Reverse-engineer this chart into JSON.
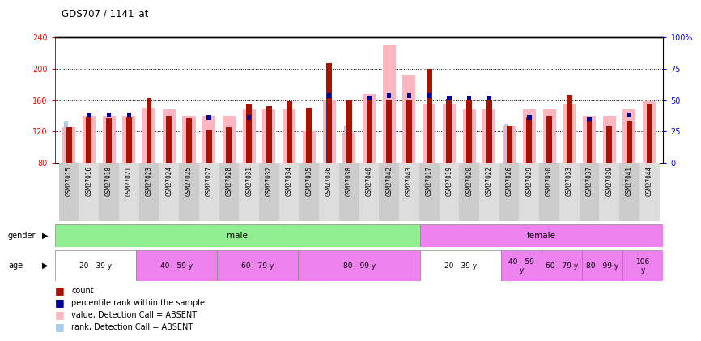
{
  "title": "GDS707 / 1141_at",
  "samples": [
    "GSM27015",
    "GSM27016",
    "GSM27018",
    "GSM27021",
    "GSM27023",
    "GSM27024",
    "GSM27025",
    "GSM27027",
    "GSM27028",
    "GSM27031",
    "GSM27032",
    "GSM27034",
    "GSM27035",
    "GSM27036",
    "GSM27038",
    "GSM27040",
    "GSM27042",
    "GSM27043",
    "GSM27017",
    "GSM27019",
    "GSM27020",
    "GSM27022",
    "GSM27026",
    "GSM27029",
    "GSM27030",
    "GSM27033",
    "GSM27037",
    "GSM27039",
    "GSM27041",
    "GSM27044"
  ],
  "count": [
    125,
    138,
    137,
    138,
    163,
    140,
    137,
    122,
    125,
    155,
    152,
    158,
    150,
    207,
    160,
    160,
    161,
    160,
    200,
    162,
    161,
    161,
    128,
    138,
    140,
    167,
    133,
    126,
    133,
    155
  ],
  "rank": [
    null,
    138,
    138,
    138,
    null,
    null,
    null,
    135,
    null,
    135,
    null,
    null,
    null,
    163,
    null,
    160,
    163,
    163,
    163,
    160,
    160,
    160,
    null,
    135,
    null,
    null,
    133,
    null,
    138,
    null
  ],
  "pink_value": [
    125,
    140,
    140,
    140,
    150,
    148,
    140,
    140,
    140,
    148,
    148,
    148,
    120,
    160,
    118,
    168,
    230,
    192,
    155,
    155,
    148,
    148,
    128,
    148,
    148,
    155,
    140,
    140,
    148,
    158
  ],
  "light_blue_rank": [
    133,
    null,
    null,
    null,
    null,
    null,
    null,
    null,
    null,
    null,
    null,
    null,
    null,
    160,
    128,
    null,
    null,
    null,
    null,
    null,
    null,
    null,
    130,
    null,
    null,
    null,
    null,
    null,
    null,
    null
  ],
  "gender_groups": [
    {
      "label": "male",
      "start": 0,
      "end": 18,
      "color": "#90EE90"
    },
    {
      "label": "female",
      "start": 18,
      "end": 30,
      "color": "#EE82EE"
    }
  ],
  "age_groups": [
    {
      "label": "20 - 39 y",
      "start": 0,
      "end": 4,
      "color": "#ffffff"
    },
    {
      "label": "40 - 59 y",
      "start": 4,
      "end": 8,
      "color": "#EE82EE"
    },
    {
      "label": "60 - 79 y",
      "start": 8,
      "end": 12,
      "color": "#EE82EE"
    },
    {
      "label": "80 - 99 y",
      "start": 12,
      "end": 18,
      "color": "#EE82EE"
    },
    {
      "label": "20 - 39 y",
      "start": 18,
      "end": 22,
      "color": "#ffffff"
    },
    {
      "label": "40 - 59\ny",
      "start": 22,
      "end": 24,
      "color": "#EE82EE"
    },
    {
      "label": "60 - 79 y",
      "start": 24,
      "end": 26,
      "color": "#EE82EE"
    },
    {
      "label": "80 - 99 y",
      "start": 26,
      "end": 28,
      "color": "#EE82EE"
    },
    {
      "label": "106\ny",
      "start": 28,
      "end": 30,
      "color": "#EE82EE"
    }
  ],
  "ylim_left": [
    80,
    240
  ],
  "ylim_right": [
    0,
    100
  ],
  "yticks_left": [
    80,
    120,
    160,
    200,
    240
  ],
  "yticks_right": [
    0,
    25,
    50,
    75,
    100
  ],
  "bar_color": "#AA1100",
  "pink_color": "#FFB6C1",
  "blue_color": "#000099",
  "light_blue_color": "#AACCEE",
  "background_chart": "#ffffff",
  "grid_color": "#000000"
}
